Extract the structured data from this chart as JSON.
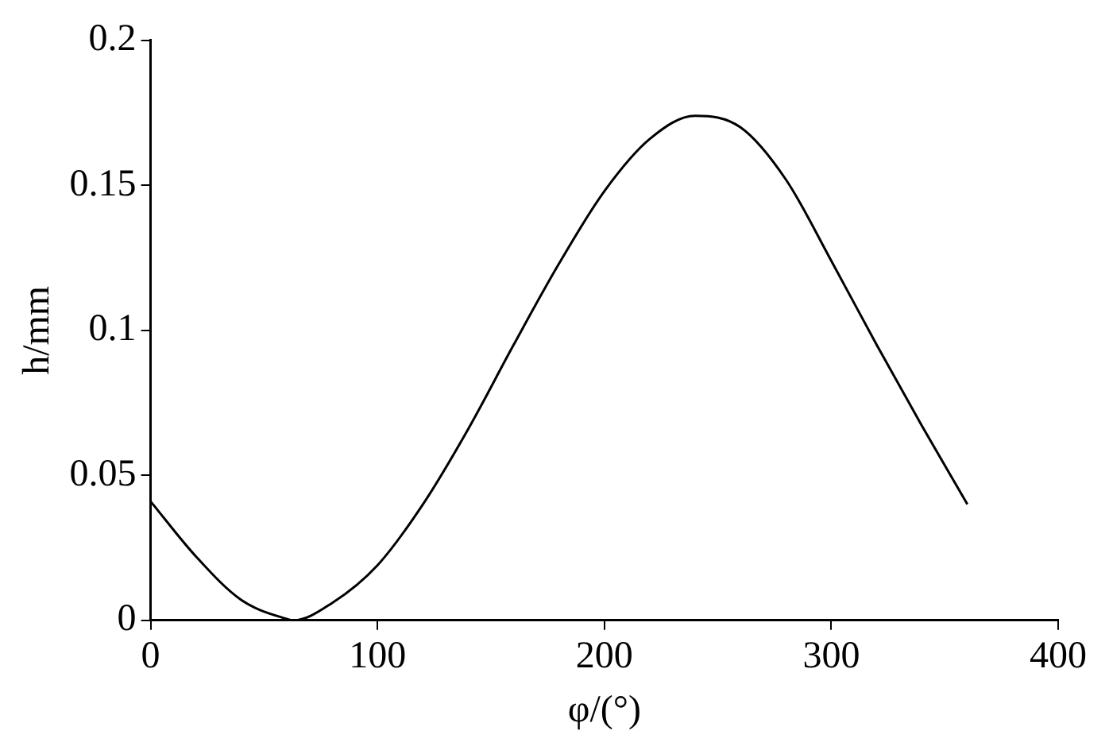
{
  "chart_data": {
    "type": "line",
    "xlabel": "φ/(°)",
    "ylabel": "h/mm",
    "x": [
      0,
      20,
      40,
      60,
      63,
      80,
      100,
      120,
      140,
      160,
      180,
      200,
      220,
      240,
      260,
      280,
      300,
      320,
      340,
      360
    ],
    "series": [
      {
        "color": "#000000",
        "values": [
          0.041,
          0.022,
          0.007,
          0.0005,
          0,
          0.006,
          0.019,
          0.04,
          0.066,
          0.095,
          0.123,
          0.148,
          0.166,
          0.174,
          0.17,
          0.152,
          0.124,
          0.095,
          0.067,
          0.04
        ]
      }
    ],
    "xlim": [
      0,
      400
    ],
    "ylim": [
      0,
      0.2
    ],
    "xticks": [
      0,
      100,
      200,
      300,
      400
    ],
    "yticks": [
      0,
      0.05,
      0.1,
      0.15,
      0.2
    ],
    "marker": "none",
    "line_style": "solid"
  }
}
